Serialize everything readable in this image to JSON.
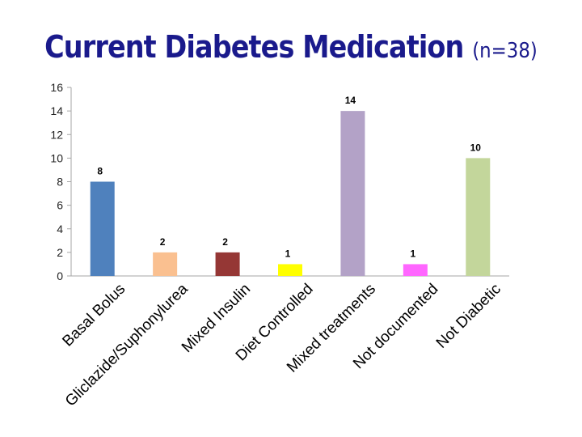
{
  "page": {
    "title": "Current Diabetes Medication",
    "subtitle": "(n=38)"
  },
  "colors": {
    "title": "#1a1a8c",
    "axis": "#a6a6a6"
  },
  "chart_data": {
    "type": "bar",
    "title": "Current Diabetes Medication (n=38)",
    "xlabel": "",
    "ylabel": "",
    "ylim": [
      0,
      16
    ],
    "yticks": [
      0,
      2,
      4,
      6,
      8,
      10,
      12,
      14,
      16
    ],
    "grid": false,
    "categories": [
      "Basal Bolus",
      "Gliclazide/Suphonylurea",
      "Mixed Insulin",
      "Diet Controlled",
      "Mixed treatments",
      "Not documented",
      "Not Diabetic"
    ],
    "values": [
      8,
      2,
      2,
      1,
      14,
      1,
      10
    ],
    "bar_colors": [
      "#4f81bd",
      "#fac090",
      "#953735",
      "#ffff00",
      "#b3a2c7",
      "#ff66ff",
      "#c3d69b"
    ],
    "data_labels": [
      "8",
      "2",
      "2",
      "1",
      "14",
      "1",
      "10"
    ]
  }
}
